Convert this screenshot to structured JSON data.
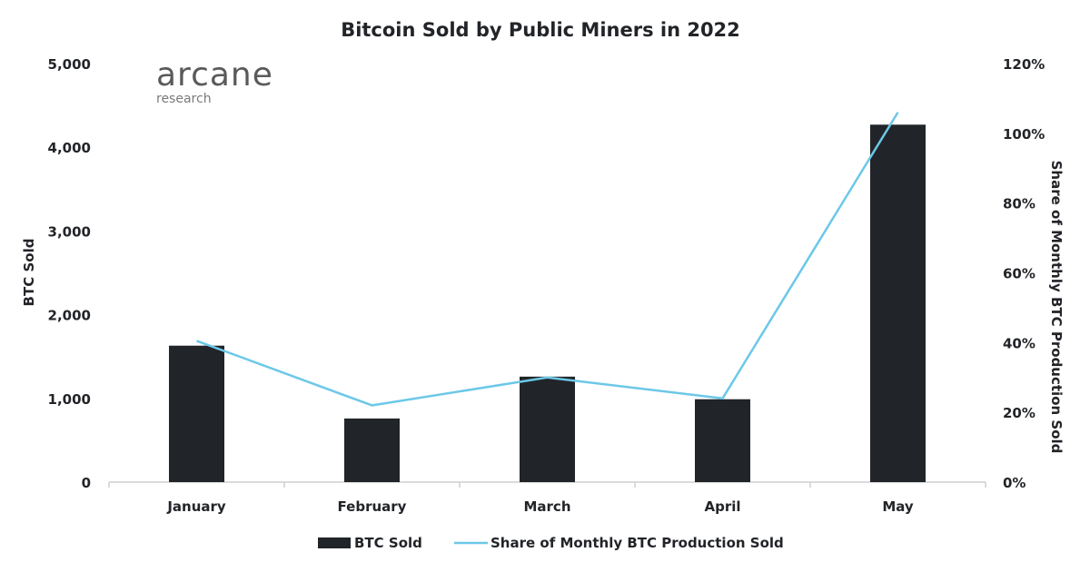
{
  "brand": {
    "name": "arcane",
    "sub": "research"
  },
  "colors": {
    "bar": "#212428",
    "line": "#6cc8e8",
    "axis": "#cfcfcf",
    "text": "#222428"
  },
  "chart_data": {
    "type": "bar",
    "title": "Bitcoin Sold by Public Miners in 2022",
    "categories": [
      "January",
      "February",
      "March",
      "April",
      "May"
    ],
    "series": [
      {
        "name": "BTC Sold",
        "kind": "bar",
        "axis": "left",
        "values": [
          1630,
          760,
          1260,
          990,
          4270
        ]
      },
      {
        "name": "Share of Monthly BTC Production Sold",
        "kind": "line",
        "axis": "right",
        "values": [
          40.5,
          22,
          30,
          24,
          106
        ]
      }
    ],
    "ylabel": "BTC Sold",
    "ylim": [
      0,
      5000
    ],
    "yticks": [
      0,
      1000,
      2000,
      3000,
      4000,
      5000
    ],
    "ytick_labels": [
      "0",
      "1,000",
      "2,000",
      "3,000",
      "4,000",
      "5,000"
    ],
    "y2label": "Share of Monthly BTC Production Sold",
    "y2lim": [
      0,
      120
    ],
    "y2ticks": [
      0,
      20,
      40,
      60,
      80,
      100,
      120
    ],
    "y2tick_labels": [
      "0%",
      "20%",
      "40%",
      "60%",
      "80%",
      "100%",
      "120%"
    ],
    "grid": false,
    "legend_position": "bottom-center"
  }
}
